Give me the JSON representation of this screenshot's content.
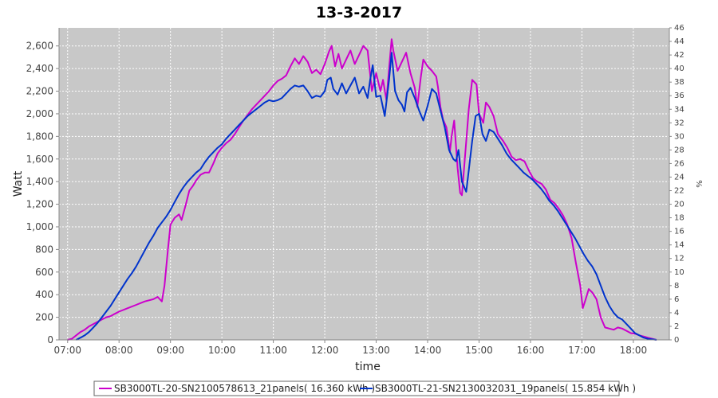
{
  "chart_data": {
    "type": "line",
    "title": "13-3-2017",
    "xlabel": "time",
    "ylabel": "Watt",
    "y2label": "%",
    "xlim": [
      "06:50",
      "18:42"
    ],
    "ylim": [
      0,
      2760
    ],
    "y2lim": [
      0,
      46
    ],
    "x_ticks": [
      "07:00",
      "08:00",
      "09:00",
      "10:00",
      "11:00",
      "12:00",
      "13:00",
      "14:00",
      "15:00",
      "16:00",
      "17:00",
      "18:00"
    ],
    "y_ticks": [
      "0",
      "200",
      "400",
      "600",
      "800",
      "1,000",
      "1,200",
      "1,400",
      "1,600",
      "1,800",
      "2,000",
      "2,200",
      "2,400",
      "2,600"
    ],
    "y2_ticks": [
      "0",
      "2",
      "4",
      "6",
      "8",
      "10",
      "12",
      "14",
      "16",
      "18",
      "20",
      "22",
      "24",
      "26",
      "28",
      "30",
      "32",
      "34",
      "36",
      "38",
      "40",
      "42",
      "44",
      "46"
    ],
    "grid": true,
    "legend_position": "bottom",
    "series": [
      {
        "name": "SB3000TL-20-SN2100578613_21panels( 16.360 kWh )",
        "color": "#cc00cc",
        "points": [
          [
            "07:00",
            0
          ],
          [
            "07:05",
            10
          ],
          [
            "07:10",
            40
          ],
          [
            "07:15",
            70
          ],
          [
            "07:20",
            90
          ],
          [
            "07:25",
            120
          ],
          [
            "07:30",
            140
          ],
          [
            "07:35",
            160
          ],
          [
            "07:40",
            180
          ],
          [
            "07:45",
            200
          ],
          [
            "07:50",
            210
          ],
          [
            "07:55",
            230
          ],
          [
            "08:00",
            250
          ],
          [
            "08:10",
            280
          ],
          [
            "08:20",
            310
          ],
          [
            "08:30",
            340
          ],
          [
            "08:40",
            360
          ],
          [
            "08:45",
            380
          ],
          [
            "08:50",
            340
          ],
          [
            "08:53",
            480
          ],
          [
            "08:57",
            800
          ],
          [
            "09:00",
            1020
          ],
          [
            "09:05",
            1080
          ],
          [
            "09:10",
            1110
          ],
          [
            "09:13",
            1060
          ],
          [
            "09:18",
            1200
          ],
          [
            "09:22",
            1320
          ],
          [
            "09:26",
            1360
          ],
          [
            "09:30",
            1410
          ],
          [
            "09:35",
            1460
          ],
          [
            "09:40",
            1480
          ],
          [
            "09:45",
            1480
          ],
          [
            "09:50",
            1560
          ],
          [
            "09:55",
            1650
          ],
          [
            "10:00",
            1700
          ],
          [
            "10:05",
            1740
          ],
          [
            "10:10",
            1770
          ],
          [
            "10:15",
            1820
          ],
          [
            "10:20",
            1880
          ],
          [
            "10:25",
            1940
          ],
          [
            "10:30",
            1990
          ],
          [
            "10:35",
            2040
          ],
          [
            "10:40",
            2080
          ],
          [
            "10:45",
            2120
          ],
          [
            "10:50",
            2160
          ],
          [
            "10:55",
            2200
          ],
          [
            "11:00",
            2250
          ],
          [
            "11:05",
            2290
          ],
          [
            "11:10",
            2310
          ],
          [
            "11:15",
            2340
          ],
          [
            "11:20",
            2420
          ],
          [
            "11:25",
            2490
          ],
          [
            "11:30",
            2440
          ],
          [
            "11:35",
            2510
          ],
          [
            "11:40",
            2460
          ],
          [
            "11:45",
            2360
          ],
          [
            "11:50",
            2390
          ],
          [
            "11:55",
            2350
          ],
          [
            "12:00",
            2440
          ],
          [
            "12:05",
            2550
          ],
          [
            "12:08",
            2600
          ],
          [
            "12:12",
            2420
          ],
          [
            "12:16",
            2530
          ],
          [
            "12:20",
            2400
          ],
          [
            "12:25",
            2480
          ],
          [
            "12:30",
            2560
          ],
          [
            "12:35",
            2440
          ],
          [
            "12:40",
            2520
          ],
          [
            "12:45",
            2600
          ],
          [
            "12:50",
            2560
          ],
          [
            "12:55",
            2200
          ],
          [
            "13:00",
            2360
          ],
          [
            "13:05",
            2200
          ],
          [
            "13:08",
            2300
          ],
          [
            "13:12",
            2120
          ],
          [
            "13:15",
            2400
          ],
          [
            "13:18",
            2660
          ],
          [
            "13:20",
            2560
          ],
          [
            "13:25",
            2380
          ],
          [
            "13:30",
            2460
          ],
          [
            "13:35",
            2540
          ],
          [
            "13:40",
            2360
          ],
          [
            "13:45",
            2230
          ],
          [
            "13:48",
            2060
          ],
          [
            "13:52",
            2320
          ],
          [
            "13:55",
            2480
          ],
          [
            "14:00",
            2420
          ],
          [
            "14:05",
            2380
          ],
          [
            "14:10",
            2330
          ],
          [
            "14:12",
            2240
          ],
          [
            "14:15",
            2060
          ],
          [
            "14:18",
            1950
          ],
          [
            "14:22",
            1880
          ],
          [
            "14:26",
            1660
          ],
          [
            "14:28",
            1800
          ],
          [
            "14:31",
            1940
          ],
          [
            "14:35",
            1520
          ],
          [
            "14:38",
            1300
          ],
          [
            "14:40",
            1280
          ],
          [
            "14:43",
            1560
          ],
          [
            "14:48",
            2040
          ],
          [
            "14:52",
            2300
          ],
          [
            "14:57",
            2260
          ],
          [
            "15:00",
            2000
          ],
          [
            "15:05",
            1920
          ],
          [
            "15:08",
            2100
          ],
          [
            "15:12",
            2060
          ],
          [
            "15:17",
            1980
          ],
          [
            "15:22",
            1820
          ],
          [
            "15:28",
            1760
          ],
          [
            "15:33",
            1700
          ],
          [
            "15:38",
            1620
          ],
          [
            "15:43",
            1590
          ],
          [
            "15:48",
            1600
          ],
          [
            "15:53",
            1580
          ],
          [
            "15:58",
            1500
          ],
          [
            "16:03",
            1430
          ],
          [
            "16:08",
            1400
          ],
          [
            "16:13",
            1380
          ],
          [
            "16:18",
            1330
          ],
          [
            "16:23",
            1240
          ],
          [
            "16:28",
            1210
          ],
          [
            "16:33",
            1160
          ],
          [
            "16:38",
            1100
          ],
          [
            "16:43",
            1020
          ],
          [
            "16:48",
            900
          ],
          [
            "16:53",
            680
          ],
          [
            "16:58",
            480
          ],
          [
            "17:01",
            280
          ],
          [
            "17:04",
            350
          ],
          [
            "17:08",
            450
          ],
          [
            "17:12",
            420
          ],
          [
            "17:17",
            360
          ],
          [
            "17:22",
            200
          ],
          [
            "17:27",
            110
          ],
          [
            "17:32",
            100
          ],
          [
            "17:37",
            90
          ],
          [
            "17:42",
            110
          ],
          [
            "17:47",
            100
          ],
          [
            "17:52",
            80
          ],
          [
            "17:57",
            60
          ],
          [
            "18:02",
            55
          ],
          [
            "18:07",
            40
          ],
          [
            "18:12",
            30
          ],
          [
            "18:17",
            20
          ],
          [
            "18:22",
            10
          ],
          [
            "18:27",
            0
          ]
        ]
      },
      {
        "name": "SB3000TL-21-SN2130032031_19panels( 15.854 kWh )",
        "color": "#0033cc",
        "points": [
          [
            "07:10",
            0
          ],
          [
            "07:15",
            20
          ],
          [
            "07:20",
            40
          ],
          [
            "07:25",
            70
          ],
          [
            "07:30",
            110
          ],
          [
            "07:35",
            150
          ],
          [
            "07:40",
            200
          ],
          [
            "07:45",
            250
          ],
          [
            "07:50",
            300
          ],
          [
            "07:55",
            360
          ],
          [
            "08:00",
            420
          ],
          [
            "08:05",
            480
          ],
          [
            "08:10",
            540
          ],
          [
            "08:15",
            590
          ],
          [
            "08:20",
            650
          ],
          [
            "08:25",
            720
          ],
          [
            "08:30",
            790
          ],
          [
            "08:35",
            860
          ],
          [
            "08:40",
            920
          ],
          [
            "08:45",
            990
          ],
          [
            "08:50",
            1040
          ],
          [
            "08:55",
            1090
          ],
          [
            "09:00",
            1150
          ],
          [
            "09:05",
            1220
          ],
          [
            "09:10",
            1290
          ],
          [
            "09:15",
            1350
          ],
          [
            "09:20",
            1400
          ],
          [
            "09:25",
            1440
          ],
          [
            "09:30",
            1480
          ],
          [
            "09:35",
            1510
          ],
          [
            "09:40",
            1570
          ],
          [
            "09:45",
            1620
          ],
          [
            "09:50",
            1660
          ],
          [
            "09:55",
            1700
          ],
          [
            "10:00",
            1730
          ],
          [
            "10:05",
            1780
          ],
          [
            "10:10",
            1820
          ],
          [
            "10:15",
            1860
          ],
          [
            "10:20",
            1900
          ],
          [
            "10:25",
            1940
          ],
          [
            "10:30",
            1980
          ],
          [
            "10:35",
            2010
          ],
          [
            "10:40",
            2040
          ],
          [
            "10:45",
            2070
          ],
          [
            "10:50",
            2100
          ],
          [
            "10:55",
            2120
          ],
          [
            "11:00",
            2110
          ],
          [
            "11:05",
            2120
          ],
          [
            "11:10",
            2140
          ],
          [
            "11:15",
            2180
          ],
          [
            "11:20",
            2220
          ],
          [
            "11:25",
            2250
          ],
          [
            "11:30",
            2240
          ],
          [
            "11:35",
            2250
          ],
          [
            "11:40",
            2200
          ],
          [
            "11:45",
            2140
          ],
          [
            "11:50",
            2160
          ],
          [
            "11:55",
            2150
          ],
          [
            "12:00",
            2200
          ],
          [
            "12:03",
            2300
          ],
          [
            "12:07",
            2320
          ],
          [
            "12:10",
            2220
          ],
          [
            "12:15",
            2170
          ],
          [
            "12:20",
            2270
          ],
          [
            "12:25",
            2180
          ],
          [
            "12:30",
            2250
          ],
          [
            "12:35",
            2320
          ],
          [
            "12:40",
            2180
          ],
          [
            "12:45",
            2240
          ],
          [
            "12:50",
            2140
          ],
          [
            "12:53",
            2300
          ],
          [
            "12:56",
            2430
          ],
          [
            "13:00",
            2150
          ],
          [
            "13:05",
            2160
          ],
          [
            "13:10",
            1980
          ],
          [
            "13:15",
            2300
          ],
          [
            "13:18",
            2540
          ],
          [
            "13:22",
            2200
          ],
          [
            "13:26",
            2120
          ],
          [
            "13:30",
            2080
          ],
          [
            "13:33",
            2020
          ],
          [
            "13:36",
            2190
          ],
          [
            "13:40",
            2230
          ],
          [
            "13:45",
            2140
          ],
          [
            "13:50",
            2030
          ],
          [
            "13:55",
            1940
          ],
          [
            "14:00",
            2070
          ],
          [
            "14:05",
            2220
          ],
          [
            "14:10",
            2180
          ],
          [
            "14:15",
            2030
          ],
          [
            "14:20",
            1880
          ],
          [
            "14:25",
            1680
          ],
          [
            "14:30",
            1600
          ],
          [
            "14:33",
            1580
          ],
          [
            "14:36",
            1680
          ],
          [
            "14:40",
            1400
          ],
          [
            "14:45",
            1310
          ],
          [
            "14:48",
            1500
          ],
          [
            "14:52",
            1760
          ],
          [
            "14:56",
            1980
          ],
          [
            "15:00",
            2000
          ],
          [
            "15:04",
            1820
          ],
          [
            "15:08",
            1760
          ],
          [
            "15:12",
            1860
          ],
          [
            "15:17",
            1840
          ],
          [
            "15:22",
            1780
          ],
          [
            "15:27",
            1720
          ],
          [
            "15:32",
            1650
          ],
          [
            "15:37",
            1600
          ],
          [
            "15:42",
            1560
          ],
          [
            "15:47",
            1520
          ],
          [
            "15:52",
            1480
          ],
          [
            "15:57",
            1450
          ],
          [
            "16:02",
            1420
          ],
          [
            "16:07",
            1380
          ],
          [
            "16:12",
            1340
          ],
          [
            "16:17",
            1290
          ],
          [
            "16:22",
            1230
          ],
          [
            "16:27",
            1190
          ],
          [
            "16:32",
            1140
          ],
          [
            "16:37",
            1080
          ],
          [
            "16:42",
            1020
          ],
          [
            "16:47",
            960
          ],
          [
            "16:52",
            900
          ],
          [
            "16:57",
            830
          ],
          [
            "17:02",
            760
          ],
          [
            "17:07",
            700
          ],
          [
            "17:12",
            650
          ],
          [
            "17:17",
            580
          ],
          [
            "17:22",
            480
          ],
          [
            "17:27",
            380
          ],
          [
            "17:32",
            300
          ],
          [
            "17:37",
            240
          ],
          [
            "17:42",
            200
          ],
          [
            "17:47",
            180
          ],
          [
            "17:52",
            140
          ],
          [
            "17:57",
            100
          ],
          [
            "18:02",
            60
          ],
          [
            "18:07",
            40
          ],
          [
            "18:12",
            20
          ],
          [
            "18:17",
            10
          ],
          [
            "18:22",
            5
          ],
          [
            "18:27",
            0
          ]
        ]
      }
    ]
  }
}
